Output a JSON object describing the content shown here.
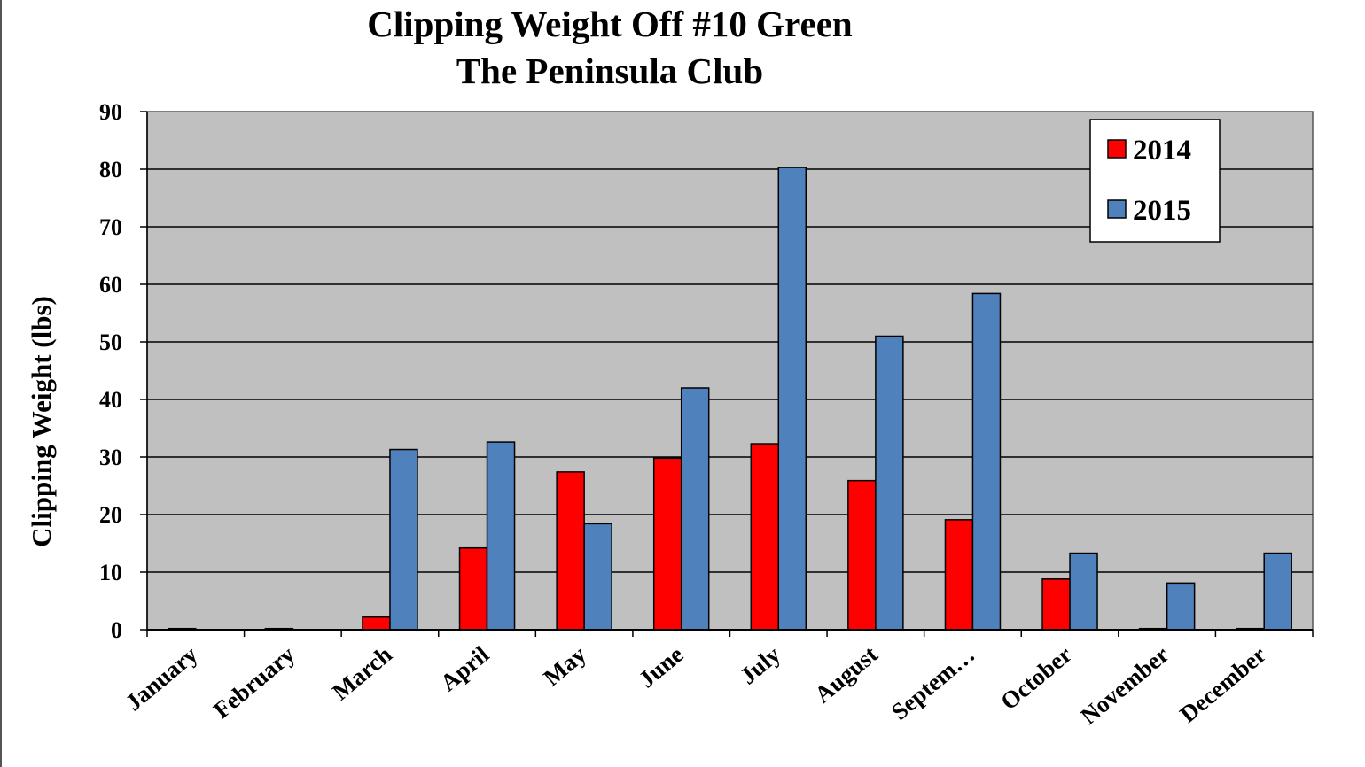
{
  "chart_data": {
    "type": "bar",
    "title": "Clipping Weight Off #10 Green",
    "subtitle": "The Peninsula Club",
    "xlabel": "",
    "ylabel": "Clipping Weight (lbs)",
    "ylim": [
      0,
      90
    ],
    "yticks": [
      0,
      10,
      20,
      30,
      40,
      50,
      60,
      70,
      80,
      90
    ],
    "grid": true,
    "legend_position": "top-right",
    "categories": [
      "January",
      "February",
      "March",
      "April",
      "May",
      "June",
      "July",
      "August",
      "Septem…",
      "October",
      "November",
      "December"
    ],
    "series": [
      {
        "name": "2014",
        "color": "#ff0000",
        "values": [
          0.2,
          0.2,
          2.2,
          14.2,
          27.4,
          29.8,
          32.3,
          25.9,
          19.1,
          8.8,
          0.2,
          0.2
        ]
      },
      {
        "name": "2015",
        "color": "#4f81bd",
        "values": [
          null,
          null,
          31.3,
          32.6,
          18.4,
          42.0,
          80.3,
          51.0,
          58.4,
          13.3,
          8.1,
          13.3
        ]
      }
    ]
  },
  "colors": {
    "plot_background": "#c0c0c0",
    "gridline": "#000000",
    "series_2014": "#ff0000",
    "series_2015": "#4f81bd"
  }
}
